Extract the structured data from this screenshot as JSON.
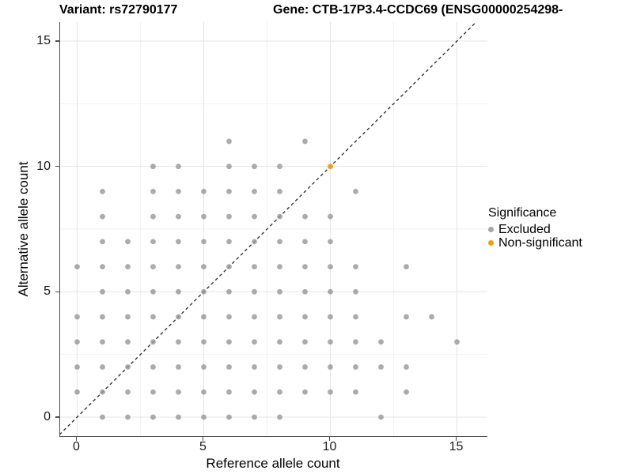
{
  "titles": {
    "variant": "Variant: rs72790177",
    "gene": "Gene: CTB-17P3.4-CCDC69 (ENSG00000254298-"
  },
  "axes": {
    "x": {
      "label": "Reference allele count",
      "major_ticks": [
        0,
        5,
        10,
        15
      ],
      "minor_ticks": [
        2.5,
        7.5,
        12.5
      ],
      "range_shown": [
        -0.67,
        16.2
      ]
    },
    "y": {
      "label": "Alternative allele count",
      "major_ticks": [
        0,
        5,
        10,
        15
      ],
      "minor_ticks": [
        2.5,
        7.5,
        12.5
      ],
      "range_shown": [
        -0.74,
        15.76
      ]
    }
  },
  "legend": {
    "title": "Significance",
    "items": [
      {
        "label": "Excluded",
        "color": "#a6a6a6"
      },
      {
        "label": "Non-significant",
        "color": "#fa9e00"
      }
    ]
  },
  "colors": {
    "excluded_point": "#999999",
    "non_significant_point": "#fa9e00",
    "grid_major": "#e4e4e4",
    "grid_minor": "#f1f1f1",
    "axis_line": "#4d4d4d",
    "diagonal_line": "#262626",
    "background": "#ffffff"
  },
  "chart_data": {
    "type": "scatter",
    "title_left": "Variant: rs72790177",
    "title_right": "Gene: CTB-17P3.4-CCDC69 (ENSG00000254298-",
    "xlabel": "Reference allele count",
    "ylabel": "Alternative allele count",
    "xlim": [
      -0.67,
      16.2
    ],
    "ylim": [
      -0.74,
      15.76
    ],
    "grid": true,
    "legend_position": "right",
    "reference_line": {
      "type": "identity y=x",
      "style": "dashed"
    },
    "series": [
      {
        "name": "Excluded",
        "color": "#999999",
        "points": [
          [
            1,
            0
          ],
          [
            2,
            0
          ],
          [
            3,
            0
          ],
          [
            4,
            0
          ],
          [
            5,
            0
          ],
          [
            6,
            0
          ],
          [
            7,
            0
          ],
          [
            8,
            0
          ],
          [
            12,
            0
          ],
          [
            0,
            1
          ],
          [
            1,
            1
          ],
          [
            2,
            1
          ],
          [
            3,
            1
          ],
          [
            4,
            1
          ],
          [
            5,
            1
          ],
          [
            6,
            1
          ],
          [
            7,
            1
          ],
          [
            8,
            1
          ],
          [
            9,
            1
          ],
          [
            10,
            1
          ],
          [
            11,
            1
          ],
          [
            13,
            1
          ],
          [
            0,
            2
          ],
          [
            1,
            2
          ],
          [
            2,
            2
          ],
          [
            3,
            2
          ],
          [
            4,
            2
          ],
          [
            5,
            2
          ],
          [
            6,
            2
          ],
          [
            7,
            2
          ],
          [
            8,
            2
          ],
          [
            9,
            2
          ],
          [
            10,
            2
          ],
          [
            11,
            2
          ],
          [
            12,
            2
          ],
          [
            13,
            2
          ],
          [
            0,
            3
          ],
          [
            1,
            3
          ],
          [
            2,
            3
          ],
          [
            3,
            3
          ],
          [
            4,
            3
          ],
          [
            5,
            3
          ],
          [
            6,
            3
          ],
          [
            7,
            3
          ],
          [
            8,
            3
          ],
          [
            9,
            3
          ],
          [
            10,
            3
          ],
          [
            11,
            3
          ],
          [
            12,
            3
          ],
          [
            15,
            3
          ],
          [
            0,
            4
          ],
          [
            1,
            4
          ],
          [
            2,
            4
          ],
          [
            3,
            4
          ],
          [
            4,
            4
          ],
          [
            5,
            4
          ],
          [
            6,
            4
          ],
          [
            7,
            4
          ],
          [
            8,
            4
          ],
          [
            9,
            4
          ],
          [
            10,
            4
          ],
          [
            11,
            4
          ],
          [
            13,
            4
          ],
          [
            14,
            4
          ],
          [
            1,
            5
          ],
          [
            2,
            5
          ],
          [
            3,
            5
          ],
          [
            4,
            5
          ],
          [
            5,
            5
          ],
          [
            6,
            5
          ],
          [
            7,
            5
          ],
          [
            8,
            5
          ],
          [
            9,
            5
          ],
          [
            10,
            5
          ],
          [
            11,
            5
          ],
          [
            0,
            6
          ],
          [
            1,
            6
          ],
          [
            2,
            6
          ],
          [
            3,
            6
          ],
          [
            4,
            6
          ],
          [
            5,
            6
          ],
          [
            6,
            6
          ],
          [
            7,
            6
          ],
          [
            8,
            6
          ],
          [
            9,
            6
          ],
          [
            10,
            6
          ],
          [
            11,
            6
          ],
          [
            13,
            6
          ],
          [
            1,
            7
          ],
          [
            2,
            7
          ],
          [
            3,
            7
          ],
          [
            4,
            7
          ],
          [
            5,
            7
          ],
          [
            6,
            7
          ],
          [
            7,
            7
          ],
          [
            8,
            7
          ],
          [
            9,
            7
          ],
          [
            10,
            7
          ],
          [
            1,
            8
          ],
          [
            3,
            8
          ],
          [
            4,
            8
          ],
          [
            5,
            8
          ],
          [
            6,
            8
          ],
          [
            7,
            8
          ],
          [
            8,
            8
          ],
          [
            9,
            8
          ],
          [
            10,
            8
          ],
          [
            1,
            9
          ],
          [
            3,
            9
          ],
          [
            4,
            9
          ],
          [
            5,
            9
          ],
          [
            6,
            9
          ],
          [
            7,
            9
          ],
          [
            8,
            9
          ],
          [
            11,
            9
          ],
          [
            3,
            10
          ],
          [
            4,
            10
          ],
          [
            6,
            10
          ],
          [
            7,
            10
          ],
          [
            8,
            10
          ],
          [
            6,
            11
          ],
          [
            9,
            11
          ]
        ]
      },
      {
        "name": "Non-significant",
        "color": "#fa9e00",
        "points": [
          [
            10,
            10
          ]
        ]
      }
    ]
  }
}
